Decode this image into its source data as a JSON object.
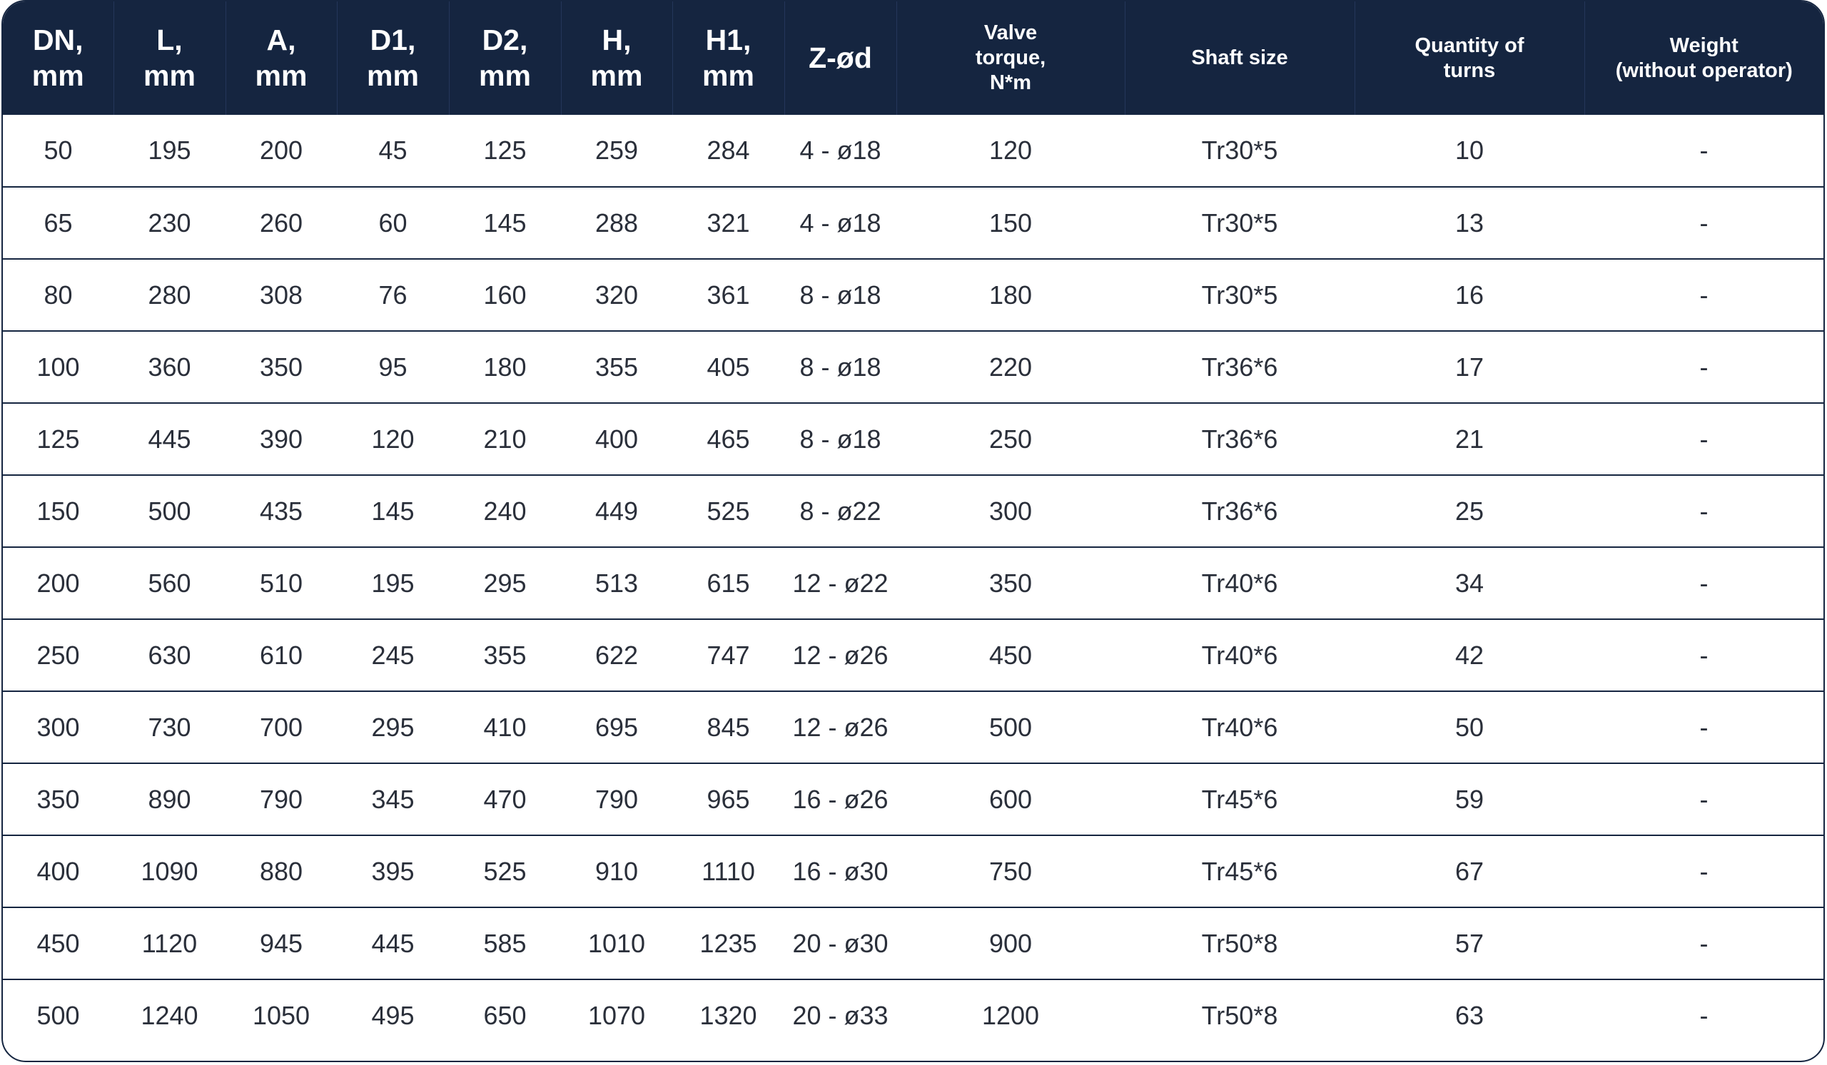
{
  "table": {
    "headers": [
      {
        "label": "DN,\nmm",
        "size": "big"
      },
      {
        "label": "L,\nmm",
        "size": "big"
      },
      {
        "label": "A,\nmm",
        "size": "big"
      },
      {
        "label": "D1,\nmm",
        "size": "big"
      },
      {
        "label": "D2,\nmm",
        "size": "big"
      },
      {
        "label": "H,\nmm",
        "size": "big"
      },
      {
        "label": "H1,\nmm",
        "size": "big"
      },
      {
        "label": "Z-ød",
        "size": "big"
      },
      {
        "label": "Valve\ntorque,\nN*m",
        "size": "small"
      },
      {
        "label": "Shaft size",
        "size": "small"
      },
      {
        "label": "Quantity of\nturns",
        "size": "small"
      },
      {
        "label": "Weight\n(without operator)",
        "size": "small"
      }
    ],
    "rows": [
      [
        "50",
        "195",
        "200",
        "45",
        "125",
        "259",
        "284",
        "4 - ø18",
        "120",
        "Tr30*5",
        "10",
        "-"
      ],
      [
        "65",
        "230",
        "260",
        "60",
        "145",
        "288",
        "321",
        "4 - ø18",
        "150",
        "Tr30*5",
        "13",
        "-"
      ],
      [
        "80",
        "280",
        "308",
        "76",
        "160",
        "320",
        "361",
        "8 - ø18",
        "180",
        "Tr30*5",
        "16",
        "-"
      ],
      [
        "100",
        "360",
        "350",
        "95",
        "180",
        "355",
        "405",
        "8 - ø18",
        "220",
        "Tr36*6",
        "17",
        "-"
      ],
      [
        "125",
        "445",
        "390",
        "120",
        "210",
        "400",
        "465",
        "8 - ø18",
        "250",
        "Tr36*6",
        "21",
        "-"
      ],
      [
        "150",
        "500",
        "435",
        "145",
        "240",
        "449",
        "525",
        "8 - ø22",
        "300",
        "Tr36*6",
        "25",
        "-"
      ],
      [
        "200",
        "560",
        "510",
        "195",
        "295",
        "513",
        "615",
        "12 - ø22",
        "350",
        "Tr40*6",
        "34",
        "-"
      ],
      [
        "250",
        "630",
        "610",
        "245",
        "355",
        "622",
        "747",
        "12 - ø26",
        "450",
        "Tr40*6",
        "42",
        "-"
      ],
      [
        "300",
        "730",
        "700",
        "295",
        "410",
        "695",
        "845",
        "12 - ø26",
        "500",
        "Tr40*6",
        "50",
        "-"
      ],
      [
        "350",
        "890",
        "790",
        "345",
        "470",
        "790",
        "965",
        "16 - ø26",
        "600",
        "Tr45*6",
        "59",
        "-"
      ],
      [
        "400",
        "1090",
        "880",
        "395",
        "525",
        "910",
        "1110",
        "16 - ø30",
        "750",
        "Tr45*6",
        "67",
        "-"
      ],
      [
        "450",
        "1120",
        "945",
        "445",
        "585",
        "1010",
        "1235",
        "20 - ø30",
        "900",
        "Tr50*8",
        "57",
        "-"
      ],
      [
        "500",
        "1240",
        "1050",
        "495",
        "650",
        "1070",
        "1320",
        "20 - ø33",
        "1200",
        "Tr50*8",
        "63",
        "-"
      ]
    ]
  },
  "colors": {
    "header_bg": "#152540",
    "header_text": "#ffffff",
    "body_text": "#2a2f3a",
    "row_border": "#152540"
  }
}
